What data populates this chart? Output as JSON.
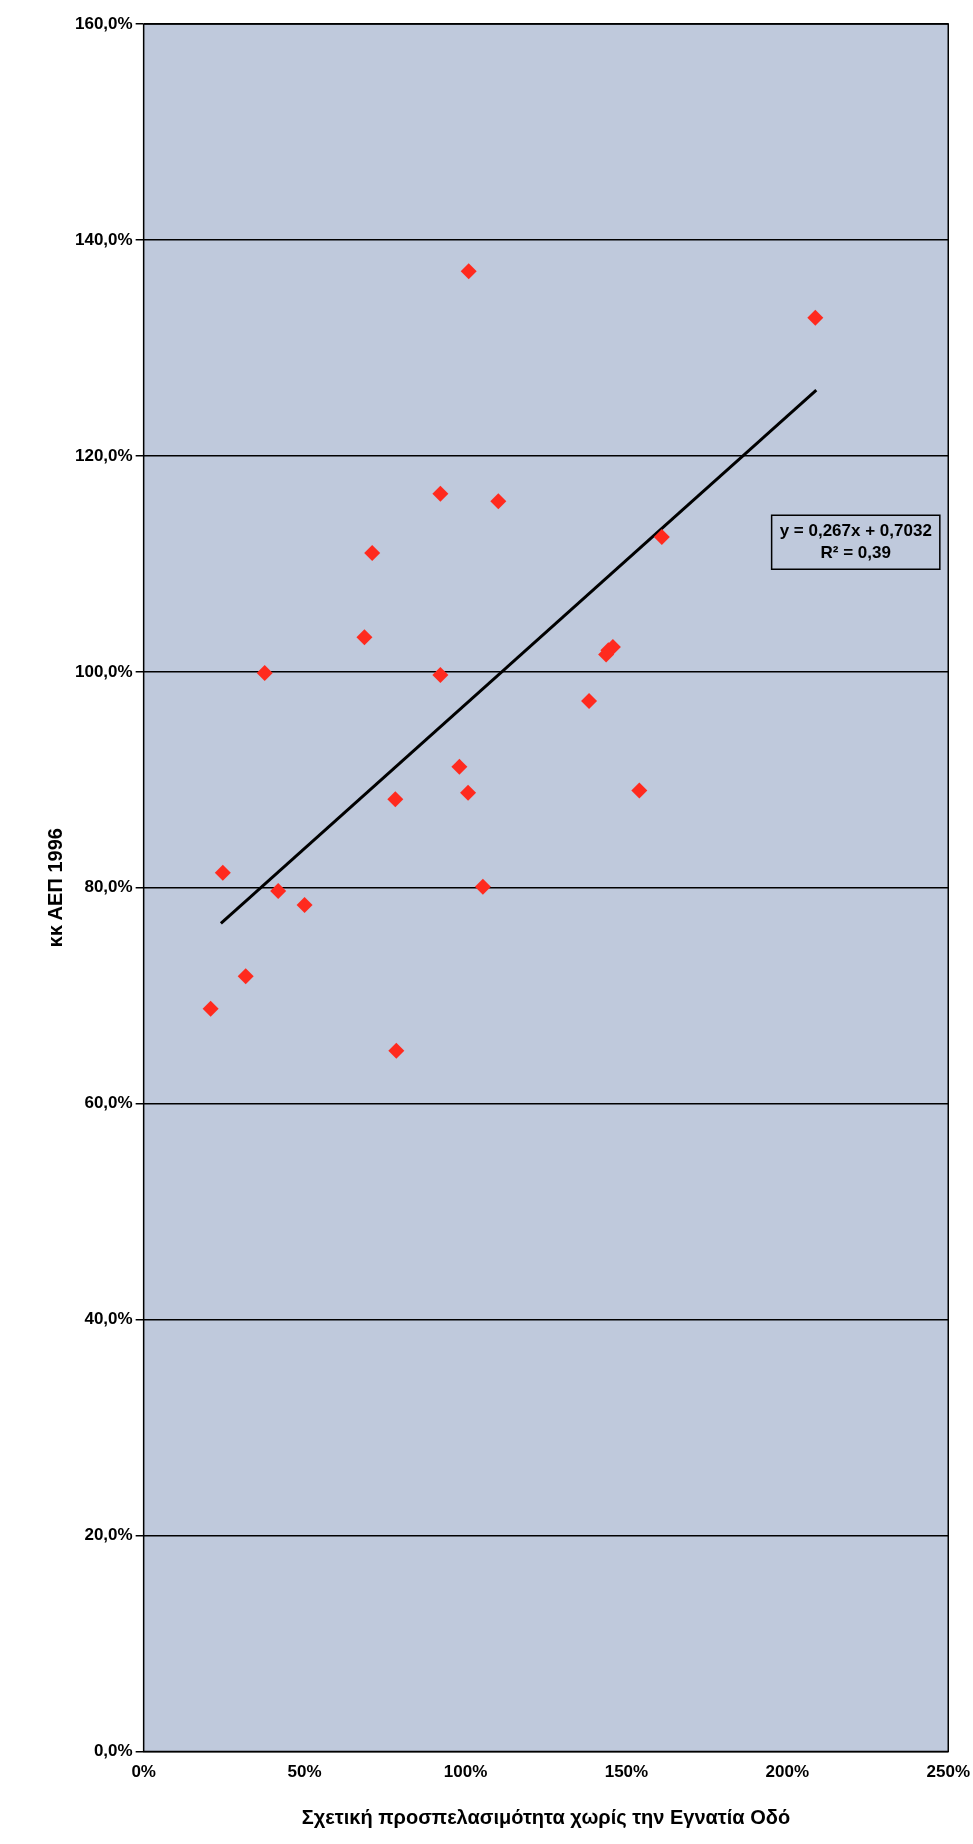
{
  "chart_data": {
    "type": "scatter",
    "xlabel": "Σχετική προσπελασιμότητα χωρίς την Εγνατία Οδό",
    "ylabel": "κκ ΑΕΠ 1996",
    "annotations": [
      "y = 0,267x + 0,7032",
      "R² = 0,39"
    ],
    "series": [
      {
        "color": "#ff2a1e",
        "marker": "diamond",
        "x": [
          208.7,
          161,
          154,
          145.8,
          144.4,
          143.7,
          138.4,
          105.4,
          110.2,
          101,
          100.8,
          98.1,
          92.2,
          92.2,
          78.5,
          78.2,
          71,
          68.6,
          50,
          41.8,
          37.6,
          31.7,
          24.6,
          20.8
        ],
        "values": [
          132.8,
          112.5,
          89,
          102.3,
          102,
          101.6,
          97.3,
          80.1,
          115.8,
          137.1,
          88.8,
          91.2,
          99.7,
          116.5,
          64.9,
          88.2,
          111,
          103.2,
          78.4,
          79.7,
          99.9,
          71.8,
          81.4,
          68.8
        ]
      },
      {
        "type": "line",
        "color": "#000000",
        "marker": "none",
        "x": [
          24,
          209
        ],
        "values": [
          76.7,
          126.1
        ]
      }
    ],
    "xlim": [
      0,
      250
    ],
    "xticks": [
      {
        "value": 0,
        "label": "0%"
      },
      {
        "value": 50,
        "label": "50%"
      },
      {
        "value": 100,
        "label": "100%"
      },
      {
        "value": 150,
        "label": "150%"
      },
      {
        "value": 200,
        "label": "200%"
      },
      {
        "value": 250,
        "label": "250%"
      }
    ],
    "ylim": [
      0,
      160
    ],
    "yticks": [
      {
        "value": 0,
        "label": "0,0%"
      },
      {
        "value": 20,
        "label": "20,0%"
      },
      {
        "value": 40,
        "label": "40,0%"
      },
      {
        "value": 60,
        "label": "60,0%"
      },
      {
        "value": 80,
        "label": "80,0%"
      },
      {
        "value": 100,
        "label": "100,0%"
      },
      {
        "value": 120,
        "label": "120,0%"
      },
      {
        "value": 140,
        "label": "140,0%"
      },
      {
        "value": 160,
        "label": "160,0%"
      }
    ],
    "grid": "y",
    "legend": false
  }
}
